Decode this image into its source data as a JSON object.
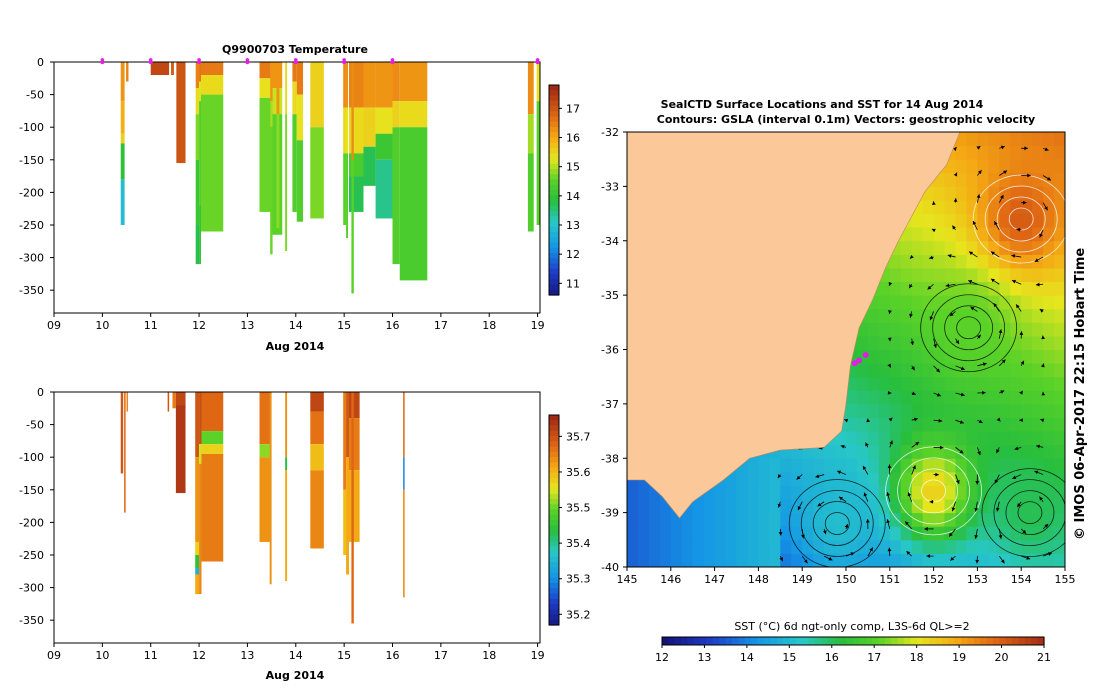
{
  "chart_data": [
    {
      "type": "heatmap",
      "title": "Q9900703  Temperature",
      "xlabel": "Aug 2014",
      "ylabel": "",
      "x_ticks": [
        "09",
        "10",
        "11",
        "12",
        "13",
        "14",
        "15",
        "16",
        "17",
        "18",
        "19"
      ],
      "y_ticks": [
        "0",
        "-50",
        "-100",
        "-150",
        "-200",
        "-250",
        "-300",
        "-350"
      ],
      "xlim": [
        9,
        19.05
      ],
      "ylim": [
        -385,
        0
      ],
      "colorbar_ticks": [
        "17",
        "16",
        "15",
        "14",
        "13",
        "12",
        "11"
      ],
      "colorbar_range": [
        10.6,
        17.8
      ],
      "surface_markers": [
        10,
        11,
        12,
        13,
        14,
        15,
        16,
        19
      ],
      "profiles": [
        {
          "x0": 10.38,
          "x1": 10.46,
          "depth": 250,
          "layers": [
            [
              0,
              16.3
            ],
            [
              60,
              16.0
            ],
            [
              110,
              15.6
            ],
            [
              125,
              14.0
            ],
            [
              180,
              13.0
            ]
          ]
        },
        {
          "x0": 10.49,
          "x1": 10.54,
          "depth": 30,
          "layers": [
            [
              0,
              16.5
            ]
          ]
        },
        {
          "x0": 11.0,
          "x1": 11.38,
          "depth": 20,
          "layers": [
            [
              0,
              17.3
            ]
          ]
        },
        {
          "x0": 11.42,
          "x1": 11.48,
          "depth": 20,
          "layers": [
            [
              0,
              17.0
            ]
          ]
        },
        {
          "x0": 11.53,
          "x1": 11.72,
          "depth": 155,
          "layers": [
            [
              0,
              17.1
            ]
          ]
        },
        {
          "x0": 11.93,
          "x1": 12.0,
          "depth": 310,
          "layers": [
            [
              0,
              16.5
            ],
            [
              40,
              15.5
            ],
            [
              80,
              14.8
            ],
            [
              150,
              14.2
            ],
            [
              250,
              13.8
            ]
          ]
        },
        {
          "x0": 12.0,
          "x1": 12.04,
          "depth": 310,
          "layers": [
            [
              0,
              16.7
            ],
            [
              30,
              15.3
            ],
            [
              60,
              14.5
            ],
            [
              220,
              14.1
            ]
          ]
        },
        {
          "x0": 12.04,
          "x1": 12.5,
          "depth": 260,
          "layers": [
            [
              0,
              16.6
            ],
            [
              20,
              15.5
            ],
            [
              50,
              14.7
            ]
          ]
        },
        {
          "x0": 13.25,
          "x1": 13.48,
          "depth": 230,
          "layers": [
            [
              0,
              16.6
            ],
            [
              25,
              15.4
            ],
            [
              55,
              14.7
            ],
            [
              230,
              14.0
            ]
          ]
        },
        {
          "x0": 13.48,
          "x1": 13.72,
          "depth": 265,
          "layers": [
            [
              0,
              16.3
            ],
            [
              40,
              15.2
            ],
            [
              80,
              14.6
            ]
          ]
        },
        {
          "x0": 13.47,
          "x1": 13.52,
          "depth": 295,
          "layers": [
            [
              0,
              16.3
            ],
            [
              60,
              15.0
            ],
            [
              100,
              14.7
            ]
          ]
        },
        {
          "x0": 13.6,
          "x1": 13.66,
          "depth": 255,
          "layers": [
            [
              0,
              16.3
            ],
            [
              80,
              14.9
            ]
          ]
        },
        {
          "x0": 13.78,
          "x1": 13.82,
          "depth": 290,
          "layers": [
            [
              0,
              15.5
            ],
            [
              80,
              14.8
            ]
          ]
        },
        {
          "x0": 13.93,
          "x1": 14.02,
          "depth": 230,
          "layers": [
            [
              0,
              16.6
            ],
            [
              30,
              15.5
            ],
            [
              80,
              14.5
            ]
          ]
        },
        {
          "x0": 14.02,
          "x1": 14.15,
          "depth": 245,
          "layers": [
            [
              0,
              16.6
            ],
            [
              50,
              15.4
            ],
            [
              120,
              14.5
            ]
          ]
        },
        {
          "x0": 14.3,
          "x1": 14.58,
          "depth": 240,
          "layers": [
            [
              0,
              15.6
            ],
            [
              100,
              14.8
            ]
          ]
        },
        {
          "x0": 14.98,
          "x1": 15.04,
          "depth": 250,
          "layers": [
            [
              0,
              16.4
            ],
            [
              70,
              15.5
            ],
            [
              140,
              14.6
            ]
          ]
        },
        {
          "x0": 15.04,
          "x1": 15.08,
          "depth": 270,
          "layers": [
            [
              0,
              16.4
            ],
            [
              70,
              15.4
            ],
            [
              140,
              14.5
            ]
          ]
        },
        {
          "x0": 15.1,
          "x1": 15.4,
          "depth": 230,
          "layers": [
            [
              0,
              16.5
            ],
            [
              70,
              15.5
            ],
            [
              140,
              14.4
            ],
            [
              175,
              13.8
            ]
          ]
        },
        {
          "x0": 15.4,
          "x1": 15.65,
          "depth": 190,
          "layers": [
            [
              0,
              16.3
            ],
            [
              70,
              15.6
            ],
            [
              130,
              13.8
            ]
          ]
        },
        {
          "x0": 15.65,
          "x1": 16.0,
          "depth": 240,
          "layers": [
            [
              0,
              16.3
            ],
            [
              70,
              15.4
            ],
            [
              110,
              14.2
            ],
            [
              150,
              13.5
            ]
          ]
        },
        {
          "x0": 16.0,
          "x1": 16.15,
          "depth": 310,
          "layers": [
            [
              0,
              16.4
            ],
            [
              60,
              15.6
            ],
            [
              100,
              14.5
            ]
          ]
        },
        {
          "x0": 16.15,
          "x1": 16.72,
          "depth": 335,
          "layers": [
            [
              0,
              16.3
            ],
            [
              60,
              15.5
            ],
            [
              100,
              14.4
            ]
          ]
        },
        {
          "x0": 15.15,
          "x1": 15.2,
          "depth": 355,
          "layers": [
            [
              0,
              16.4
            ],
            [
              150,
              14.6
            ]
          ]
        },
        {
          "x0": 18.8,
          "x1": 18.92,
          "depth": 260,
          "layers": [
            [
              0,
              16.4
            ],
            [
              80,
              15.0
            ],
            [
              140,
              14.5
            ]
          ]
        },
        {
          "x0": 18.98,
          "x1": 19.04,
          "depth": 250,
          "layers": [
            [
              0,
              15.4
            ],
            [
              60,
              14.6
            ]
          ]
        }
      ]
    },
    {
      "type": "heatmap",
      "title": "",
      "xlabel": "Aug 2014",
      "ylabel": "",
      "x_ticks": [
        "09",
        "10",
        "11",
        "12",
        "13",
        "14",
        "15",
        "16",
        "17",
        "18",
        "19"
      ],
      "y_ticks": [
        "0",
        "-50",
        "-100",
        "-150",
        "-200",
        "-250",
        "-300",
        "-350"
      ],
      "xlim": [
        9,
        19.05
      ],
      "ylim": [
        -385,
        0
      ],
      "colorbar_ticks": [
        "35.7",
        "35.6",
        "35.5",
        "35.4",
        "35.3",
        "35.2"
      ],
      "colorbar_range": [
        35.17,
        35.76
      ],
      "profiles": [
        {
          "x0": 10.38,
          "x1": 10.43,
          "depth": 125,
          "layers": [
            [
              0,
              35.7
            ]
          ]
        },
        {
          "x0": 10.45,
          "x1": 10.48,
          "depth": 185,
          "layers": [
            [
              0,
              35.68
            ]
          ]
        },
        {
          "x0": 10.5,
          "x1": 10.53,
          "depth": 30,
          "layers": [
            [
              0,
              35.65
            ]
          ]
        },
        {
          "x0": 11.35,
          "x1": 11.38,
          "depth": 30,
          "layers": [
            [
              0,
              35.7
            ]
          ]
        },
        {
          "x0": 11.45,
          "x1": 11.52,
          "depth": 25,
          "layers": [
            [
              0,
              35.66
            ]
          ]
        },
        {
          "x0": 11.52,
          "x1": 11.72,
          "depth": 155,
          "layers": [
            [
              0,
              35.72
            ],
            [
              20,
              35.74
            ]
          ]
        },
        {
          "x0": 11.92,
          "x1": 12.0,
          "depth": 310,
          "layers": [
            [
              0,
              35.7
            ],
            [
              100,
              35.64
            ],
            [
              230,
              35.58
            ],
            [
              250,
              35.45
            ],
            [
              270,
              35.35
            ],
            [
              280,
              35.62
            ]
          ]
        },
        {
          "x0": 12.0,
          "x1": 12.05,
          "depth": 310,
          "layers": [
            [
              0,
              35.71
            ],
            [
              80,
              35.55
            ],
            [
              110,
              35.65
            ]
          ]
        },
        {
          "x0": 12.05,
          "x1": 12.5,
          "depth": 260,
          "layers": [
            [
              0,
              35.68
            ],
            [
              60,
              35.5
            ],
            [
              80,
              35.58
            ],
            [
              95,
              35.66
            ]
          ]
        },
        {
          "x0": 13.25,
          "x1": 13.48,
          "depth": 230,
          "layers": [
            [
              0,
              35.67
            ],
            [
              80,
              35.52
            ],
            [
              100,
              35.64
            ]
          ]
        },
        {
          "x0": 13.46,
          "x1": 13.5,
          "depth": 295,
          "layers": [
            [
              0,
              35.64
            ]
          ]
        },
        {
          "x0": 13.78,
          "x1": 13.82,
          "depth": 290,
          "layers": [
            [
              0,
              35.64
            ],
            [
              100,
              35.44
            ],
            [
              120,
              35.62
            ]
          ]
        },
        {
          "x0": 14.3,
          "x1": 14.58,
          "depth": 240,
          "layers": [
            [
              0,
              35.72
            ],
            [
              30,
              35.67
            ],
            [
              80,
              35.6
            ],
            [
              120,
              35.65
            ]
          ]
        },
        {
          "x0": 14.98,
          "x1": 15.04,
          "depth": 250,
          "layers": [
            [
              0,
              35.66
            ],
            [
              150,
              35.6
            ]
          ]
        },
        {
          "x0": 15.04,
          "x1": 15.1,
          "depth": 280,
          "layers": [
            [
              0,
              35.7
            ],
            [
              100,
              35.62
            ]
          ]
        },
        {
          "x0": 15.1,
          "x1": 15.32,
          "depth": 230,
          "layers": [
            [
              0,
              35.72
            ],
            [
              40,
              35.66
            ],
            [
              120,
              35.62
            ]
          ]
        },
        {
          "x0": 15.15,
          "x1": 15.2,
          "depth": 355,
          "layers": [
            [
              0,
              35.68
            ]
          ]
        },
        {
          "x0": 16.22,
          "x1": 16.25,
          "depth": 315,
          "layers": [
            [
              0,
              35.68
            ],
            [
              100,
              35.3
            ],
            [
              150,
              35.65
            ]
          ]
        }
      ]
    },
    {
      "type": "heatmap",
      "title": "SealCTD Surface Locations and SST for 14 Aug 2014",
      "subtitle": "Contours: GSLA (interval 0.1m) Vectors: geostrophic velocity",
      "xlabel": "",
      "ylabel": "",
      "x_ticks": [
        "145",
        "146",
        "147",
        "148",
        "149",
        "150",
        "151",
        "152",
        "153",
        "154",
        "155"
      ],
      "y_ticks": [
        "-32",
        "-33",
        "-34",
        "-35",
        "-36",
        "-37",
        "-38",
        "-39",
        "-40"
      ],
      "xlim": [
        145,
        155
      ],
      "ylim": [
        -40,
        -32
      ],
      "colorbar_label": "SST (°C) 6d ngt-only comp, L3S-6d QL>=2",
      "colorbar_ticks": [
        "12",
        "13",
        "14",
        "15",
        "16",
        "17",
        "18",
        "19",
        "20",
        "21"
      ],
      "colorbar_range": [
        12,
        21
      ],
      "eddies": [
        {
          "lon": 154.0,
          "lat": -33.6,
          "sst": 20.0,
          "rotation": "anticyclonic"
        },
        {
          "lon": 152.0,
          "lat": -38.6,
          "sst": 18.3,
          "rotation": "anticyclonic"
        },
        {
          "lon": 152.8,
          "lat": -35.6,
          "sst": 17.0,
          "rotation": "cyclonic"
        },
        {
          "lon": 154.2,
          "lat": -39.0,
          "sst": 16.0,
          "rotation": "cyclonic"
        },
        {
          "lon": 149.8,
          "lat": -39.2,
          "sst": 15.0,
          "rotation": "cyclonic"
        }
      ],
      "seal_positions": [
        {
          "lon": 150.3,
          "lat": -36.2
        },
        {
          "lon": 150.45,
          "lat": -36.1
        },
        {
          "lon": 150.2,
          "lat": -36.25
        }
      ]
    }
  ],
  "side_label": "© IMOS 06-Apr-2017 22:15 Hobart Time"
}
